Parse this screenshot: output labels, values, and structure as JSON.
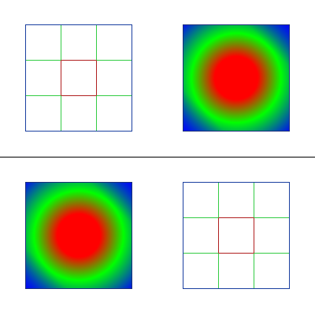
{
  "layout": {
    "rows": 2,
    "cols": 2,
    "divider": "horizontal"
  },
  "tiles": [
    {
      "id": "top-left",
      "kind": "grid-3x3"
    },
    {
      "id": "top-right",
      "kind": "gradient-square"
    },
    {
      "id": "bottom-left",
      "kind": "gradient-square"
    },
    {
      "id": "bottom-right",
      "kind": "grid-3x3"
    }
  ],
  "colors": {
    "background": "#ffffff",
    "divider": "#000000",
    "outer_border": "#1a2f7a",
    "grid_outer": "#33cc44",
    "grid_inner": "#b02020",
    "gradient_center": "#ff0000",
    "gradient_mid": "#00ff00",
    "gradient_corner": "#0000ff"
  }
}
